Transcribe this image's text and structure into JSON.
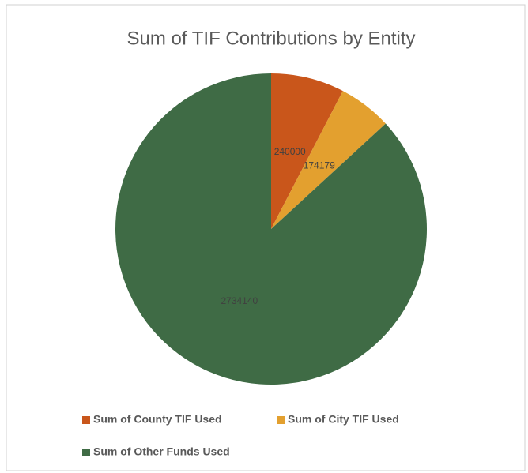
{
  "chart_data": {
    "type": "pie",
    "title": "Sum of TIF Contributions by Entity",
    "categories": [
      "Sum of County TIF Used",
      "Sum of City TIF Used",
      "Sum of Other Funds Used"
    ],
    "values": [
      240000,
      174179,
      2734140
    ],
    "colors": [
      "#c9561b",
      "#e3a02f",
      "#3f6b45"
    ]
  }
}
